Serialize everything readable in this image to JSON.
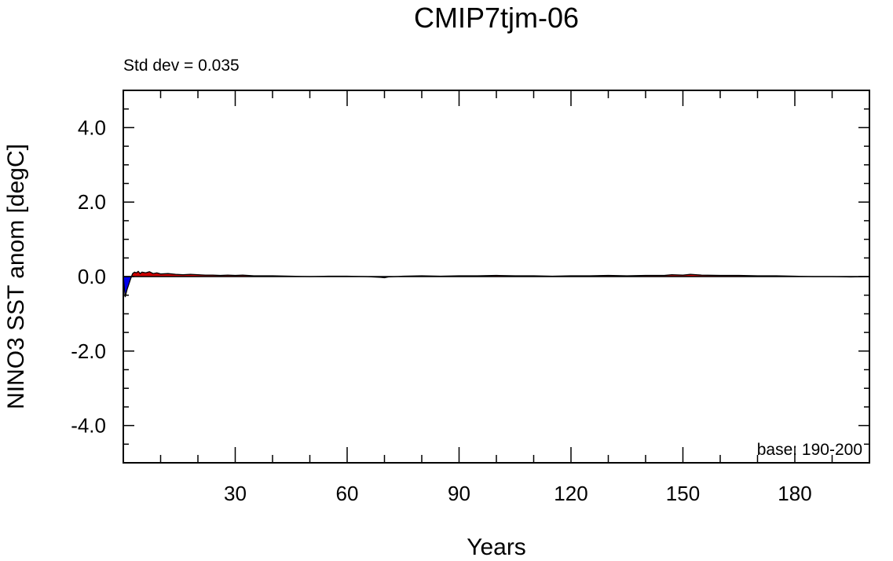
{
  "chart_data": {
    "type": "area",
    "title": "CMIP7tjm-06",
    "xlabel": "Years",
    "ylabel": "NINO3 SST anom [degC]",
    "std_dev_text": "Std dev = 0.035",
    "base_text": "base: 190-200",
    "xlim": [
      0,
      200
    ],
    "ylim": [
      -5,
      5
    ],
    "x_ticks": [
      30,
      60,
      90,
      120,
      150,
      180
    ],
    "x_tick_labels": [
      "30",
      "60",
      "90",
      "120",
      "150",
      "180"
    ],
    "y_ticks": [
      4,
      2,
      0,
      -2,
      -4
    ],
    "y_tick_labels": [
      "4.0",
      "2.0",
      "0.0",
      "-2.0",
      "-4.0"
    ],
    "fill_positive_color": "#cc0000",
    "fill_negative_color": "#0000ee",
    "line_color": "#000000",
    "series": [
      {
        "x": [
          0,
          0.5,
          1,
          1.5,
          2,
          2.5,
          3,
          3.5,
          4,
          4.5,
          5,
          6,
          7,
          8,
          9,
          10,
          12,
          14,
          16,
          18,
          20,
          22,
          24,
          26,
          28,
          30,
          32,
          35,
          40,
          45,
          50,
          55,
          60,
          65,
          69,
          70,
          71,
          75,
          80,
          85,
          90,
          95,
          100,
          105,
          110,
          115,
          120,
          125,
          130,
          135,
          140,
          145,
          147,
          150,
          152,
          155,
          160,
          165,
          170,
          175,
          180,
          185,
          190,
          195,
          200
        ],
        "values": [
          0,
          -0.55,
          -0.35,
          -0.2,
          -0.05,
          0.08,
          0.12,
          0.1,
          0.14,
          0.08,
          0.12,
          0.1,
          0.13,
          0.08,
          0.1,
          0.07,
          0.08,
          0.06,
          0.05,
          0.06,
          0.05,
          0.04,
          0.04,
          0.03,
          0.04,
          0.03,
          0.04,
          0.02,
          0.02,
          0.01,
          0.0,
          0.01,
          0.01,
          0.0,
          -0.02,
          -0.03,
          -0.01,
          0.01,
          0.02,
          0.01,
          0.02,
          0.02,
          0.03,
          0.02,
          0.02,
          0.01,
          0.02,
          0.02,
          0.03,
          0.02,
          0.03,
          0.03,
          0.05,
          0.04,
          0.06,
          0.04,
          0.03,
          0.03,
          0.02,
          0.02,
          0.01,
          0.0,
          0.0,
          -0.01,
          0.0
        ]
      }
    ]
  }
}
